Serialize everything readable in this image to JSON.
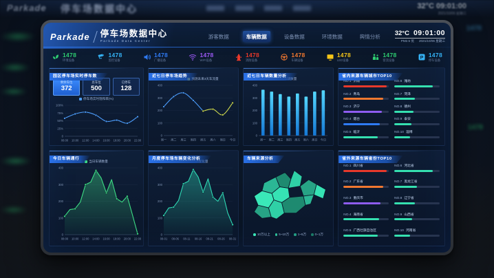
{
  "header": {
    "logo": "Parkade",
    "title": "停车场数据中心",
    "subtitle": "Parkade Data Center",
    "nav": [
      {
        "label": "游客数据",
        "active": false
      },
      {
        "label": "车辆数据",
        "active": true
      },
      {
        "label": "设备数据",
        "active": false
      },
      {
        "label": "环境数据",
        "active": false
      },
      {
        "label": "舆情分析",
        "active": false
      }
    ],
    "temperature": "32°C",
    "time": "09:01:00",
    "air_quality": "PM2.5 优",
    "date": "2021/10/06 星期三"
  },
  "stats": [
    {
      "icon": "plant-icon",
      "value": "1478",
      "label": "环境设备",
      "color": "#2ecc71"
    },
    {
      "icon": "camera-icon",
      "value": "1478",
      "label": "监控设备",
      "color": "#35b2f5"
    },
    {
      "icon": "speaker-icon",
      "value": "1478",
      "label": "广播设备",
      "color": "#2f7bf5"
    },
    {
      "icon": "wifi-icon",
      "value": "1478",
      "label": "WIFI设备",
      "color": "#9b59f6"
    },
    {
      "icon": "hydrant-icon",
      "value": "1478",
      "label": "消防设备",
      "color": "#e8392b"
    },
    {
      "icon": "steering-wheel-icon",
      "value": "1478",
      "label": "车辆设备",
      "color": "#f07830"
    },
    {
      "icon": "led-screen-icon",
      "value": "1478",
      "label": "LED设备",
      "color": "#f5c518"
    },
    {
      "icon": "people-icon",
      "value": "1478",
      "label": "客流设备",
      "color": "#2ecc71"
    },
    {
      "icon": "parking-icon",
      "value": "1478",
      "label": "停车设备",
      "color": "#35b2f5"
    }
  ],
  "panels": {
    "realtime": {
      "title": "园区停车场实时停车数",
      "stats": [
        {
          "label": "剩余车位",
          "value": "372",
          "highlight": true
        },
        {
          "label": "总车位",
          "value": "500",
          "highlight": false
        },
        {
          "label": "已停车",
          "value": "128",
          "highlight": false
        }
      ],
      "chart_data": {
        "type": "line",
        "legend": [
          "停车场实时饱和率(%)"
        ],
        "x": [
          "08:00",
          "10:00",
          "12:00",
          "14:00",
          "16:00",
          "18:00",
          "20:00",
          "22:00"
        ],
        "values": [
          58,
          72,
          78,
          68,
          48,
          52,
          42,
          63
        ],
        "ylim": [
          0,
          100
        ],
        "yticks": [
          "100%",
          "75%",
          "50%",
          "25%",
          "0"
        ],
        "color": "#4d9fff"
      }
    },
    "week_trend": {
      "title": "近七日停车场趋势",
      "chart_data": {
        "type": "line",
        "x": [
          "周一",
          "周二",
          "周三",
          "周四",
          "周五",
          "周六",
          "周日",
          "今日"
        ],
        "series": [
          {
            "name": "车流量",
            "values": [
              230,
              310,
              340,
              280,
              195,
              null,
              null,
              null
            ],
            "color": "#4d9fff"
          },
          {
            "name": "预测未来3天车流量",
            "values": [
              null,
              null,
              null,
              null,
              195,
              210,
              165,
              260
            ],
            "color": "#cdd94f"
          }
        ],
        "ylim": [
          0,
          400
        ],
        "yticks": [
          "400",
          "300",
          "200",
          "100",
          "0"
        ]
      }
    },
    "week_count": {
      "title": "近七日车辆数量分析",
      "chart_data": {
        "type": "bar",
        "legend": [
          "车辆数量"
        ],
        "categories": [
          "周一",
          "周二",
          "周三",
          "周四",
          "周五",
          "周六",
          "周日",
          "今日"
        ],
        "values": [
          365,
          350,
          330,
          310,
          335,
          310,
          350,
          360
        ],
        "ylim": [
          0,
          400
        ],
        "yticks": [
          "400",
          "300",
          "200",
          "100",
          "0"
        ],
        "color": "#35c1ff"
      }
    },
    "city_top10": {
      "title": "省内来源车辆城市TOP10",
      "items": [
        {
          "rank": "NO.1",
          "name": "济南",
          "percent": 96,
          "color": "#e8392b"
        },
        {
          "rank": "NO.2",
          "name": "青岛",
          "percent": 88,
          "color": "#f07830"
        },
        {
          "rank": "NO.3",
          "name": "济宁",
          "percent": 84,
          "color": "#8e5cf0"
        },
        {
          "rank": "NO.4",
          "name": "烟台",
          "percent": 80,
          "color": "#2f7bf5"
        },
        {
          "rank": "NO.5",
          "name": "临沂",
          "percent": 76,
          "color": "#35e0b0"
        },
        {
          "rank": "NO.6",
          "name": "潍坊",
          "percent": 85,
          "color": "#35e0b0"
        },
        {
          "rank": "NO.7",
          "name": "菏泽",
          "percent": 46,
          "color": "#35e0b0"
        },
        {
          "rank": "NO.8",
          "name": "德州",
          "percent": 42,
          "color": "#35e0b0"
        },
        {
          "rank": "NO.9",
          "name": "泰安",
          "percent": 38,
          "color": "#35e0b0"
        },
        {
          "rank": "NO.10",
          "name": "淄博",
          "percent": 34,
          "color": "#35e0b0"
        }
      ]
    },
    "today_flow": {
      "title": "今日车辆通行",
      "chart_data": {
        "type": "area",
        "legend": [
          "当日车辆数量"
        ],
        "x": [
          "08:00",
          "10:00",
          "12:00",
          "14:00",
          "16:00",
          "18:00",
          "20:00",
          "22:00"
        ],
        "values": [
          110,
          150,
          155,
          195,
          300,
          315,
          385,
          340,
          250,
          330,
          215,
          195,
          230,
          120,
          5
        ],
        "ylim": [
          0,
          400
        ],
        "yticks": [
          "400",
          "300",
          "200",
          "100",
          "0"
        ],
        "color": "#3ddc84"
      }
    },
    "month_change": {
      "title": "月度停车场车辆变化分析",
      "chart_data": {
        "type": "area",
        "legend": [
          "停车场车辆变化量"
        ],
        "x": [
          "08-01",
          "08-06",
          "08-11",
          "08-16",
          "08-21",
          "08-26",
          "08-31"
        ],
        "values": [
          115,
          160,
          165,
          205,
          305,
          320,
          390,
          345,
          255,
          335,
          225,
          200,
          250,
          130,
          60
        ],
        "ylim": [
          0,
          400
        ],
        "yticks": [
          "400",
          "300",
          "200",
          "100",
          "0"
        ],
        "color": "#2fd9b5"
      }
    },
    "coverage_map": {
      "title": "车辆来源分析",
      "legend": [
        {
          "label": "10万以上",
          "color": "#3be6b8"
        },
        {
          "label": "5~10万",
          "color": "#2fbf9a"
        },
        {
          "label": "1~5万",
          "color": "#249e84"
        },
        {
          "label": "0~1万",
          "color": "#1a7a66"
        }
      ]
    },
    "province_top10": {
      "title": "省外来源车辆省份TOP10",
      "items": [
        {
          "rank": "NO.1",
          "name": "四川省",
          "percent": 96,
          "color": "#e8392b"
        },
        {
          "rank": "NO.2",
          "name": "广东省",
          "percent": 88,
          "color": "#f07830"
        },
        {
          "rank": "NO.3",
          "name": "重庆市",
          "percent": 82,
          "color": "#8e5cf0"
        },
        {
          "rank": "NO.4",
          "name": "海南省",
          "percent": 78,
          "color": "#35e0b0"
        },
        {
          "rank": "NO.5",
          "name": "广西壮族自治区",
          "percent": 75,
          "color": "#35e0b0"
        },
        {
          "rank": "NO.6",
          "name": "河北省",
          "percent": 85,
          "color": "#35e0b0"
        },
        {
          "rank": "NO.7",
          "name": "黑龙江省",
          "percent": 50,
          "color": "#35e0b0"
        },
        {
          "rank": "NO.8",
          "name": "辽宁省",
          "percent": 45,
          "color": "#35e0b0"
        },
        {
          "rank": "NO.9",
          "name": "山西省",
          "percent": 40,
          "color": "#35e0b0"
        },
        {
          "rank": "NO.10",
          "name": "河南省",
          "percent": 35,
          "color": "#35e0b0"
        }
      ]
    }
  }
}
